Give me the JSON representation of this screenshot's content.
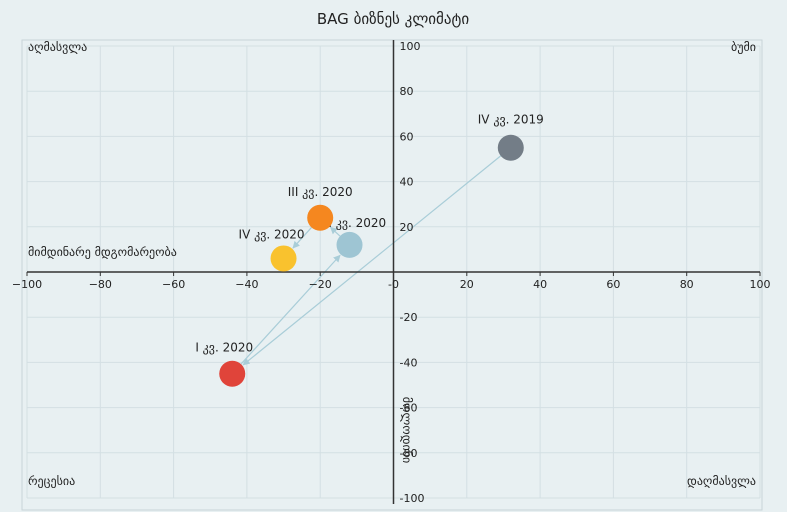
{
  "chart_data": {
    "type": "scatter",
    "title": "BAG ბიზნეს კლიმატი",
    "xlim": [
      -100,
      100
    ],
    "ylim": [
      -100,
      100
    ],
    "x_ticks": [
      -100,
      -80,
      -60,
      -40,
      -20,
      0,
      20,
      40,
      60,
      80,
      100
    ],
    "x_tick_labels": [
      "−100",
      "−80",
      "−60",
      "−40",
      "−20",
      "-0",
      "20",
      "40",
      "60",
      "80",
      "100"
    ],
    "y_ticks": [
      100,
      80,
      60,
      40,
      20,
      -20,
      -40,
      -60,
      -80,
      -100
    ],
    "y_tick_labels": [
      "100",
      "80",
      "60",
      "40",
      "20",
      "-20",
      "-40",
      "-60",
      "-80",
      "-100"
    ],
    "grid": true,
    "xlabel": "მიმდინარე მდგომარეობა",
    "ylabel": "მოლოდინი",
    "quadrant_labels": {
      "top_left": "აღმასვლა",
      "top_right": "ბუმი",
      "bottom_left": "რეცესია",
      "bottom_right": "დაღმასვლა"
    },
    "points": [
      {
        "label": "IV კვ. 2019",
        "x": 32,
        "y": 55,
        "color": "#737d87"
      },
      {
        "label": "I კვ. 2020",
        "x": -44,
        "y": -45,
        "color": "#e0443a"
      },
      {
        "label": "II კვ. 2020",
        "x": -12,
        "y": 12,
        "color": "#9ec5d3"
      },
      {
        "label": "III კვ. 2020",
        "x": -20,
        "y": 24,
        "color": "#f5871f"
      },
      {
        "label": "IV კვ. 2020",
        "x": -30,
        "y": 6,
        "color": "#f9c22e"
      }
    ],
    "path_color": "#a9cdd8"
  }
}
